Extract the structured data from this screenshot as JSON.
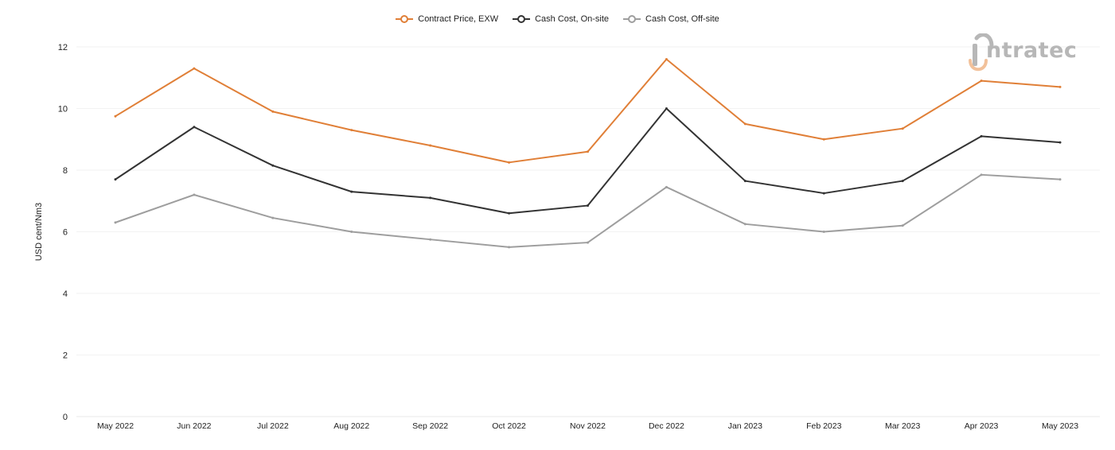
{
  "logo": {
    "text": "ntratec",
    "colors": {
      "text": "#b7b7b7",
      "accent": "#f2c19a"
    }
  },
  "chart_data": {
    "type": "line",
    "categories": [
      "May 2022",
      "Jun 2022",
      "Jul 2022",
      "Aug 2022",
      "Sep 2022",
      "Oct 2022",
      "Nov 2022",
      "Dec 2022",
      "Jan 2023",
      "Feb 2023",
      "Mar 2023",
      "Apr 2023",
      "May 2023"
    ],
    "ylabel": "USD cent/Nm3",
    "xlabel": "",
    "ylim": [
      0,
      12
    ],
    "yticks": [
      0,
      2,
      4,
      6,
      8,
      10,
      12
    ],
    "grid": true,
    "legend": "top-center",
    "series": [
      {
        "name": "Contract Price, EXW",
        "color": "#e07f37",
        "values": [
          9.75,
          11.3,
          9.9,
          9.3,
          8.8,
          8.25,
          8.6,
          11.6,
          9.5,
          9.0,
          9.35,
          10.9,
          10.7
        ]
      },
      {
        "name": "Cash Cost, On-site",
        "color": "#333333",
        "values": [
          7.7,
          9.4,
          8.15,
          7.3,
          7.1,
          6.6,
          6.85,
          10.0,
          7.65,
          7.25,
          7.65,
          9.1,
          8.9
        ]
      },
      {
        "name": "Cash Cost, Off-site",
        "color": "#9e9e9e",
        "values": [
          6.3,
          7.2,
          6.45,
          6.0,
          5.75,
          5.5,
          5.65,
          7.45,
          6.25,
          6.0,
          6.2,
          7.85,
          7.7
        ]
      }
    ]
  }
}
